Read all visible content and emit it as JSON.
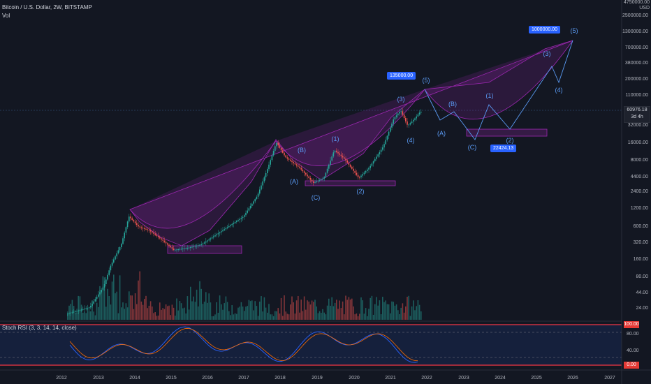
{
  "legend": {
    "title": "Bitcoin / U.S. Dollar, 2W, BITSTAMP",
    "vol": "Vol"
  },
  "axis_top": [
    "4750000.00",
    "USD"
  ],
  "price_scale": [
    "2500000.00",
    "1300000.00",
    "700000.00",
    "380000.00",
    "200000.00",
    "110000.00",
    "32000.00",
    "16000.00",
    "8000.00",
    "4400.00",
    "2400.00",
    "1200.00",
    "600.00",
    "320.00",
    "160.00",
    "80.00",
    "44.00",
    "24.00"
  ],
  "current_price": {
    "value": "60976.18",
    "sub": "3d 4h"
  },
  "rsi": {
    "title": "Stoch RSI (3, 3, 14, 14, close)",
    "scale": [
      "80.00",
      "40.00"
    ],
    "tag_top": "100.00",
    "tag_bottom": "0.00"
  },
  "time_axis": [
    "2012",
    "2013",
    "2014",
    "2015",
    "2016",
    "2017",
    "2018",
    "2019",
    "2020",
    "2021",
    "2022",
    "2023",
    "2024",
    "2025",
    "2026",
    "2027"
  ],
  "callouts": {
    "top_target": "1000000.00",
    "mid_target": "135000.00",
    "low_target": "22424.13"
  },
  "wave_labels": [
    "(5)",
    "(5)",
    "(3)",
    "(4)",
    "(1)",
    "(B)",
    "(A)",
    "(C)",
    "(2)",
    "(B)",
    "(A)",
    "(C)",
    "(1)",
    "(2)",
    "(3)",
    "(4)"
  ],
  "colors": {
    "background": "#131722",
    "up": "#26a69a",
    "down": "#ef5350",
    "wedge": "#9c27b0",
    "projection": "#5b9cf6",
    "rsi_k": "#2962ff",
    "rsi_d": "#ff6d00",
    "band": "#f23645"
  }
}
